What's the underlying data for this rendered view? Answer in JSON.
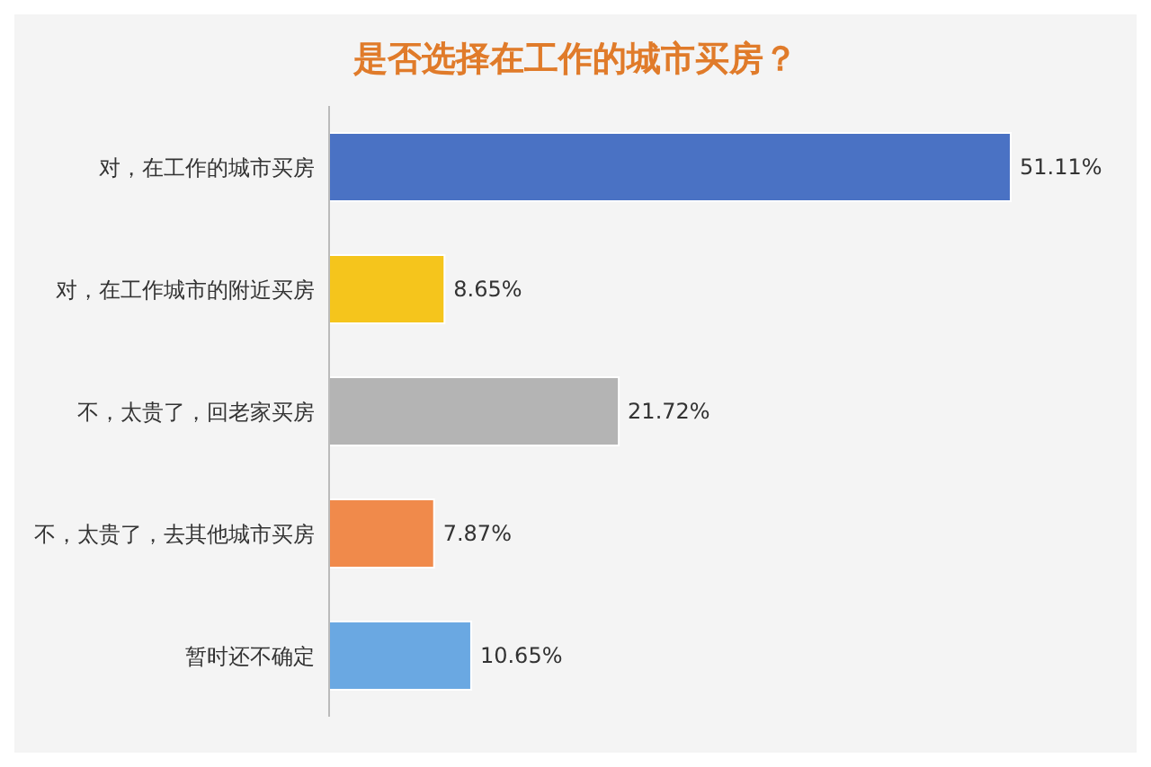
{
  "chart_data": {
    "type": "bar",
    "orientation": "horizontal",
    "title": "是否选择在工作的城市买房？",
    "categories": [
      "对，在工作的城市买房",
      "对，在工作城市的附近买房",
      "不，太贵了，回老家买房",
      "不，太贵了，去其他城市买房",
      "暂时还不确定"
    ],
    "values": [
      51.11,
      8.65,
      21.72,
      7.87,
      10.65
    ],
    "colors": [
      "#4a72c4",
      "#f5c51c",
      "#b4b4b4",
      "#f08a4b",
      "#6aa8e2"
    ],
    "value_labels": [
      "51.11%",
      "8.65%",
      "21.72%",
      "7.87%",
      "10.65%"
    ]
  }
}
